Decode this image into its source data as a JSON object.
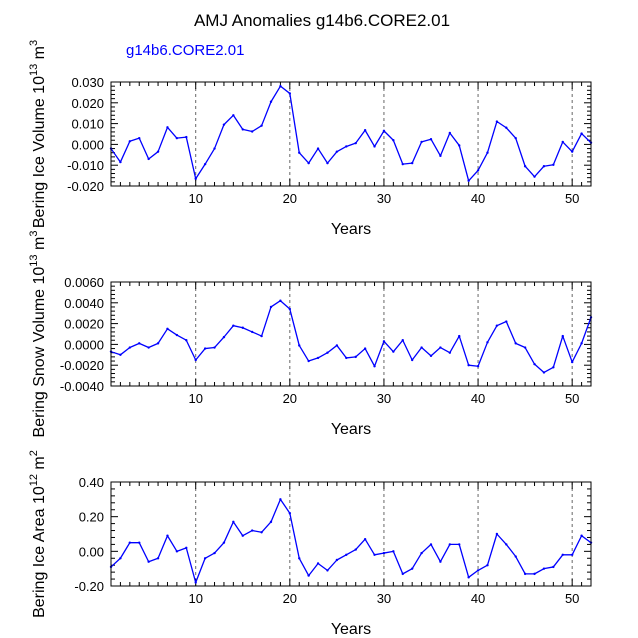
{
  "title": "AMJ Anomalies g14b6.CORE2.01",
  "subtitle": "g14b6.CORE2.01",
  "colors": {
    "series": "#0000ff",
    "subtitle": "#0000ff",
    "axis": "#000000",
    "refline": "#666666"
  },
  "chart_data": [
    {
      "type": "line",
      "title": "Bering Ice Volume",
      "ylabel": {
        "base": "Bering Ice Volume 10",
        "exp1": "13",
        "mid": " m",
        "exp2": "3"
      },
      "xlabel": "Years",
      "xlim": [
        1,
        52
      ],
      "ylim": [
        -0.02,
        0.03
      ],
      "xticks": [
        10,
        20,
        30,
        40,
        50
      ],
      "xtick_labels": [
        "10",
        "20",
        "30",
        "40",
        "50"
      ],
      "yticks": [
        -0.02,
        -0.01,
        0.0,
        0.01,
        0.02,
        0.03
      ],
      "ytick_labels": [
        "-0.020",
        "-0.010",
        "0.000",
        "0.010",
        "0.020",
        "0.030"
      ],
      "vlines": [
        10,
        20,
        30,
        40,
        50
      ],
      "series": [
        {
          "name": "g14b6.CORE2.01",
          "x": [
            1,
            2,
            3,
            4,
            5,
            6,
            7,
            8,
            9,
            10,
            11,
            12,
            13,
            14,
            15,
            16,
            17,
            18,
            19,
            20,
            21,
            22,
            23,
            24,
            25,
            26,
            27,
            28,
            29,
            30,
            31,
            32,
            33,
            34,
            35,
            36,
            37,
            38,
            39,
            40,
            41,
            42,
            43,
            44,
            45,
            46,
            47,
            48,
            49,
            50,
            51,
            52
          ],
          "values": [
            -0.002,
            -0.0085,
            0.0015,
            0.003,
            -0.007,
            -0.0035,
            0.0082,
            0.003,
            0.0035,
            -0.0165,
            -0.0095,
            -0.002,
            0.0095,
            0.014,
            0.0072,
            0.0062,
            0.009,
            0.0205,
            0.028,
            0.0245,
            -0.004,
            -0.009,
            -0.002,
            -0.009,
            -0.0035,
            -0.001,
            0.0006,
            0.0068,
            -0.001,
            0.0065,
            0.002,
            -0.0095,
            -0.009,
            0.0012,
            0.0025,
            -0.0055,
            0.0055,
            -0.0005,
            -0.0175,
            -0.0125,
            -0.004,
            0.011,
            0.008,
            0.003,
            -0.0105,
            -0.0155,
            -0.0105,
            -0.0098,
            0.0012,
            -0.0035,
            0.0052,
            0.0008
          ]
        }
      ]
    },
    {
      "type": "line",
      "title": "Bering Snow Volume",
      "ylabel": {
        "base": "Bering Snow Volume 10",
        "exp1": "13",
        "mid": " m",
        "exp2": "3"
      },
      "xlabel": "Years",
      "xlim": [
        1,
        52
      ],
      "ylim": [
        -0.004,
        0.006
      ],
      "xticks": [
        10,
        20,
        30,
        40,
        50
      ],
      "xtick_labels": [
        "10",
        "20",
        "30",
        "40",
        "50"
      ],
      "yticks": [
        -0.004,
        -0.002,
        0.0,
        0.002,
        0.004,
        0.006
      ],
      "ytick_labels": [
        "-0.0040",
        "-0.0020",
        "0.0000",
        "0.0020",
        "0.0040",
        "0.0060"
      ],
      "vlines": [
        10,
        20,
        30,
        40,
        50
      ],
      "series": [
        {
          "name": "g14b6.CORE2.01",
          "x": [
            1,
            2,
            3,
            4,
            5,
            6,
            7,
            8,
            9,
            10,
            11,
            12,
            13,
            14,
            15,
            16,
            17,
            18,
            19,
            20,
            21,
            22,
            23,
            24,
            25,
            26,
            27,
            28,
            29,
            30,
            31,
            32,
            33,
            34,
            35,
            36,
            37,
            38,
            39,
            40,
            41,
            42,
            43,
            44,
            45,
            46,
            47,
            48,
            49,
            50,
            51,
            52
          ],
          "values": [
            -0.0007,
            -0.001,
            -0.0003,
            0.0001,
            -0.0003,
            0.0001,
            0.0015,
            0.0009,
            0.0004,
            -0.0015,
            -0.0004,
            -0.0003,
            0.0007,
            0.0018,
            0.0016,
            0.0012,
            0.0008,
            0.0036,
            0.0042,
            0.0034,
            -0.0001,
            -0.0016,
            -0.0013,
            -0.0008,
            -0.0001,
            -0.0013,
            -0.0012,
            -0.0004,
            -0.0021,
            0.0003,
            -0.0007,
            0.0004,
            -0.0015,
            -0.0003,
            -0.0011,
            -0.0003,
            -0.0008,
            0.0008,
            -0.002,
            -0.0021,
            0.0002,
            0.0018,
            0.0022,
            0.0001,
            -0.0003,
            -0.0019,
            -0.0027,
            -0.0022,
            0.0008,
            -0.0017,
            0.0001,
            0.0026
          ]
        }
      ]
    },
    {
      "type": "line",
      "title": "Bering Ice Area",
      "ylabel": {
        "base": "Bering Ice Area 10",
        "exp1": "12",
        "mid": " m",
        "exp2": "2"
      },
      "xlabel": "Years",
      "xlim": [
        1,
        52
      ],
      "ylim": [
        -0.2,
        0.4
      ],
      "xticks": [
        10,
        20,
        30,
        40,
        50
      ],
      "xtick_labels": [
        "10",
        "20",
        "30",
        "40",
        "50"
      ],
      "yticks": [
        -0.2,
        0.0,
        0.2,
        0.4
      ],
      "ytick_labels": [
        "-0.20",
        "0.00",
        "0.20",
        "0.40"
      ],
      "vlines": [
        10,
        20,
        30,
        40,
        50
      ],
      "series": [
        {
          "name": "g14b6.CORE2.01",
          "x": [
            1,
            2,
            3,
            4,
            5,
            6,
            7,
            8,
            9,
            10,
            11,
            12,
            13,
            14,
            15,
            16,
            17,
            18,
            19,
            20,
            21,
            22,
            23,
            24,
            25,
            26,
            27,
            28,
            29,
            30,
            31,
            32,
            33,
            34,
            35,
            36,
            37,
            38,
            39,
            40,
            41,
            42,
            43,
            44,
            45,
            46,
            47,
            48,
            49,
            50,
            51,
            52
          ],
          "values": [
            -0.09,
            -0.04,
            0.05,
            0.05,
            -0.06,
            -0.04,
            0.09,
            0.0,
            0.02,
            -0.18,
            -0.04,
            -0.01,
            0.05,
            0.17,
            0.09,
            0.12,
            0.11,
            0.17,
            0.3,
            0.22,
            -0.04,
            -0.14,
            -0.07,
            -0.11,
            -0.05,
            -0.02,
            0.01,
            0.07,
            -0.02,
            -0.01,
            0.0,
            -0.13,
            -0.1,
            -0.01,
            0.04,
            -0.06,
            0.04,
            0.04,
            -0.15,
            -0.11,
            -0.08,
            0.1,
            0.04,
            -0.03,
            -0.13,
            -0.13,
            -0.1,
            -0.09,
            -0.02,
            -0.02,
            0.09,
            0.05
          ]
        }
      ]
    }
  ]
}
